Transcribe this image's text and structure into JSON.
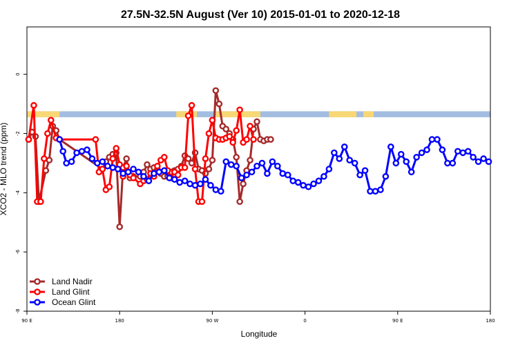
{
  "chart_data": {
    "type": "line",
    "title": "27.5N-32.5N August (Ver 10)   2015-01-01 to 2020-12-18",
    "xlabel": "Longitude",
    "ylabel": "XCO2 - MLO trend (ppm)",
    "xlim": [
      -90,
      180
    ],
    "ylim": [
      -8,
      1.6
    ],
    "x_tick_values": [
      -90,
      -36,
      18,
      72,
      126,
      180
    ],
    "x_tick_labels": [
      "90 E",
      "180",
      "90 W",
      "0",
      "90 E",
      "180"
    ],
    "y_tick_values": [
      -8,
      -6,
      -4,
      -2,
      0
    ],
    "y_tick_labels": [
      "-8",
      "-6",
      "-4",
      "-2",
      "0"
    ],
    "legend_position": "bottom-left",
    "land_mask": {
      "y_range": [
        -1.45,
        -1.25
      ],
      "ocean_color": "#a3bde0",
      "land_color": "#f8d775",
      "land_x_ranges": [
        [
          -90,
          -71
        ],
        [
          -3,
          9
        ],
        [
          19,
          46
        ],
        [
          86,
          102
        ],
        [
          106,
          112
        ]
      ]
    },
    "series": [
      {
        "name": "Land Nadir",
        "color": "#a52a2a",
        "x": [
          -89,
          -87,
          -85,
          -83,
          -79,
          -77,
          -75,
          -73,
          -71,
          -46,
          -44,
          -42,
          -40,
          -38,
          -36,
          -34,
          -32,
          -30,
          -28,
          -24,
          -22,
          -20,
          -18,
          -16,
          -14,
          -12,
          -10,
          -8,
          -6,
          -4,
          -2,
          0,
          2,
          4,
          6,
          8,
          10,
          12,
          14,
          16,
          18,
          20,
          22,
          24,
          26,
          28,
          30,
          32,
          34,
          36,
          38,
          40,
          42,
          44,
          46,
          48,
          50,
          52
        ],
        "y": [
          -2.2,
          -1.95,
          -2.1,
          -4.3,
          -3.25,
          -2.9,
          -1.75,
          -1.9,
          -2.2,
          -3.2,
          -2.95,
          -2.8,
          -2.7,
          -2.65,
          -5.15,
          -3.15,
          -2.85,
          -3.5,
          -3.45,
          -3.45,
          -3.3,
          -3.05,
          -3.2,
          -3.15,
          -3.2,
          -3.35,
          -3.45,
          -3.45,
          -3.3,
          -3.25,
          -3.2,
          -3.1,
          -2.75,
          -2.85,
          -3.0,
          -2.65,
          -3.2,
          -3.25,
          -3.35,
          -3.2,
          -2.9,
          -0.55,
          -1.0,
          -1.75,
          -1.85,
          -2.0,
          -2.2,
          -2.8,
          -4.3,
          -3.7,
          -3.25,
          -2.9,
          -1.85,
          -1.6,
          -2.2,
          -2.25,
          -2.2,
          -2.2
        ]
      },
      {
        "name": "Land Glint",
        "color": "#ff0000",
        "x": [
          -89,
          -86,
          -84,
          -82,
          -80,
          -78,
          -76,
          -73,
          -71,
          -50,
          -48,
          -46,
          -44,
          -42,
          -40,
          -38,
          -36,
          -34,
          -32,
          -30,
          -28,
          -24,
          -22,
          -20,
          -18,
          -16,
          -14,
          -12,
          -10,
          -8,
          -6,
          -4,
          -2,
          0,
          2,
          4,
          6,
          8,
          10,
          12,
          14,
          16,
          18,
          20,
          22,
          24,
          26,
          28,
          30,
          32,
          34,
          36,
          38,
          40,
          42
        ],
        "y": [
          -2.2,
          -1.05,
          -4.3,
          -4.3,
          -2.85,
          -2.0,
          -1.55,
          -2.15,
          -2.2,
          -2.2,
          -3.3,
          -3.2,
          -3.9,
          -3.8,
          -2.85,
          -2.5,
          -3.05,
          -3.45,
          -3.1,
          -3.4,
          -3.5,
          -3.7,
          -3.6,
          -3.55,
          -3.35,
          -3.45,
          -3.1,
          -2.9,
          -2.8,
          -3.25,
          -3.5,
          -3.3,
          -3.4,
          -3.15,
          -3.15,
          -1.4,
          -1.05,
          -3.2,
          -4.3,
          -4.3,
          -2.85,
          -2.0,
          -1.55,
          -2.15,
          -2.2,
          -2.2,
          -2.15,
          -2.1,
          -2.3,
          -1.9,
          -1.2,
          -2.3,
          -2.2,
          -1.75,
          -2.2
        ]
      },
      {
        "name": "Ocean Glint",
        "color": "#0000ff",
        "x": [
          -71,
          -69,
          -67,
          -64,
          -61,
          -58,
          -55,
          -52,
          -49,
          -46,
          -43,
          -40,
          -37,
          -34,
          -31,
          -28,
          -25,
          -22,
          -19,
          -16,
          -13,
          -10,
          -7,
          -4,
          -1,
          2,
          5,
          8,
          11,
          14,
          17,
          20,
          23,
          26,
          29,
          32,
          35,
          38,
          41,
          44,
          47,
          50,
          53,
          56,
          59,
          62,
          65,
          68,
          71,
          74,
          77,
          80,
          83,
          86,
          89,
          92,
          95,
          98,
          101,
          104,
          107,
          110,
          113,
          116,
          119,
          122,
          125,
          128,
          131,
          134,
          137,
          140,
          143,
          146,
          149,
          152,
          155,
          158,
          161,
          164,
          167,
          170,
          173,
          176,
          179
        ],
        "y": [
          -2.2,
          -2.6,
          -3.0,
          -2.95,
          -2.65,
          -2.6,
          -2.55,
          -2.85,
          -3.0,
          -2.95,
          -3.1,
          -3.15,
          -3.2,
          -3.35,
          -3.3,
          -3.2,
          -3.3,
          -3.45,
          -3.6,
          -3.35,
          -3.3,
          -3.25,
          -3.5,
          -3.55,
          -3.65,
          -3.6,
          -3.7,
          -3.75,
          -3.7,
          -3.55,
          -3.75,
          -3.9,
          -3.95,
          -2.95,
          -3.05,
          -3.1,
          -3.5,
          -3.4,
          -3.3,
          -3.1,
          -3.0,
          -3.35,
          -2.95,
          -3.1,
          -3.35,
          -3.4,
          -3.6,
          -3.65,
          -3.75,
          -3.8,
          -3.7,
          -3.6,
          -3.45,
          -3.2,
          -2.65,
          -2.85,
          -2.45,
          -2.9,
          -3.0,
          -3.4,
          -3.25,
          -3.95,
          -3.95,
          -3.9,
          -3.45,
          -2.45,
          -3.0,
          -2.7,
          -2.95,
          -3.3,
          -2.8,
          -2.65,
          -2.55,
          -2.2,
          -2.2,
          -2.55,
          -3.0,
          -3.0,
          -2.6,
          -2.65,
          -2.6,
          -2.8,
          -2.95,
          -2.85,
          -2.95
        ]
      }
    ]
  }
}
